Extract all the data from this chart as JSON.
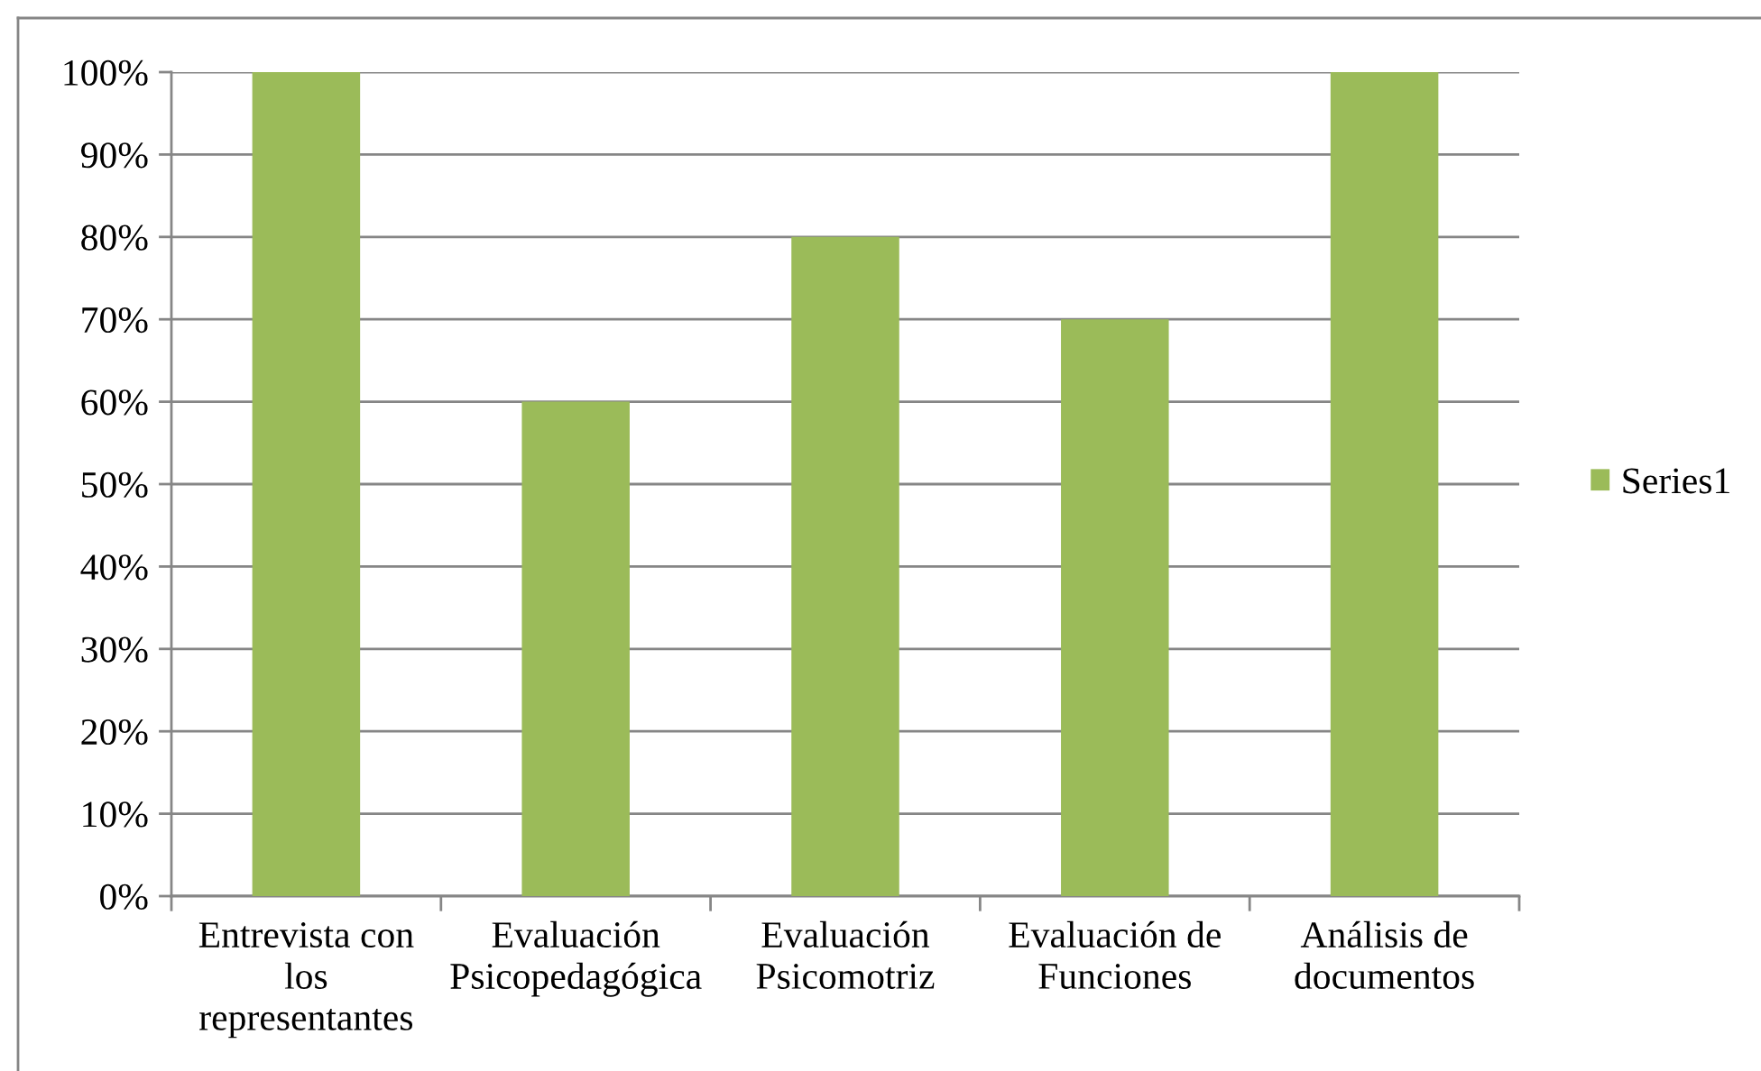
{
  "chart_data": {
    "type": "bar",
    "categories": [
      "Entrevista con los representantes",
      "Evaluación Psicopedagógica",
      "Evaluación Psicomotriz",
      "Evaluación de Funciones",
      "Análisis de documentos"
    ],
    "series": [
      {
        "name": "Series1",
        "color": "#9bbb59",
        "values": [
          100,
          60,
          80,
          70,
          100
        ]
      }
    ],
    "ylim": [
      0,
      100
    ],
    "yticks": [
      {
        "value": 0,
        "label": "0%"
      },
      {
        "value": 10,
        "label": "10%"
      },
      {
        "value": 20,
        "label": "20%"
      },
      {
        "value": 30,
        "label": "30%"
      },
      {
        "value": 40,
        "label": "40%"
      },
      {
        "value": 50,
        "label": "50%"
      },
      {
        "value": 60,
        "label": "60%"
      },
      {
        "value": 70,
        "label": "70%"
      },
      {
        "value": 80,
        "label": "80%"
      },
      {
        "value": 90,
        "label": "90%"
      },
      {
        "value": 100,
        "label": "100%"
      }
    ],
    "grid": "y",
    "legend": "right"
  }
}
